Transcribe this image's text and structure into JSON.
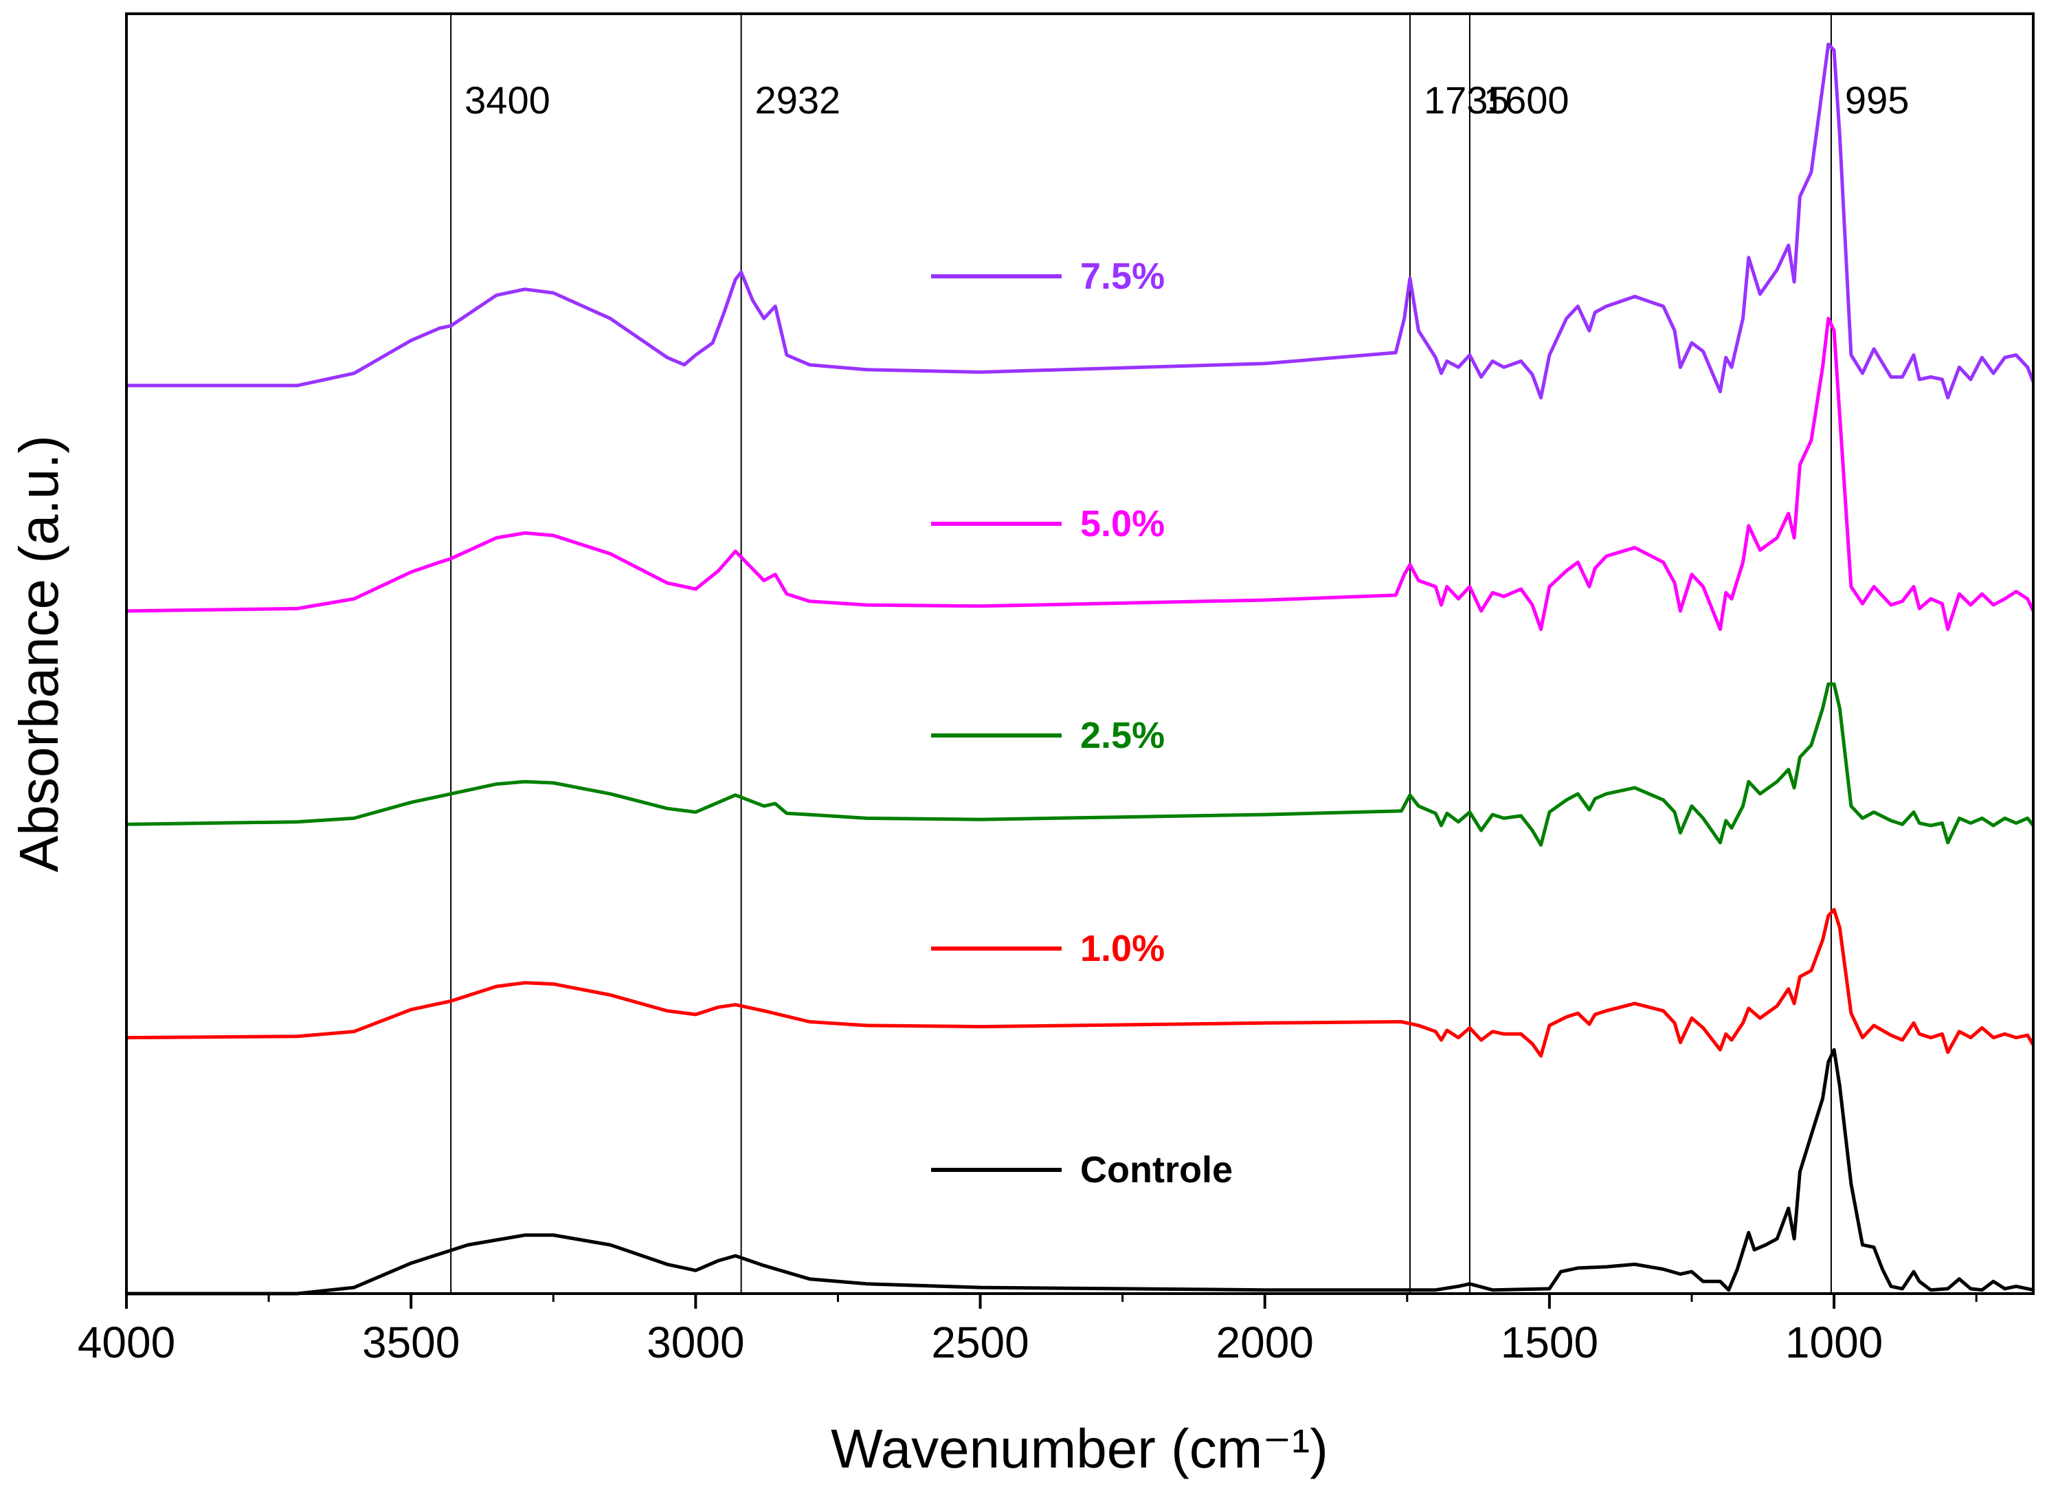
{
  "chart_data": {
    "type": "line",
    "title": "",
    "xlabel": "Wavenumber (cm⁻¹)",
    "ylabel": "Absorbance (a.u.)",
    "xlim": [
      4000,
      650
    ],
    "ylim": [
      0,
      1.05
    ],
    "grid": false,
    "legend_placement": "inline, centered, each entry above its trace",
    "x_ticks": [
      {
        "value": 4000,
        "label": "4000"
      },
      {
        "value": 3500,
        "label": "3500"
      },
      {
        "value": 3000,
        "label": "3000"
      },
      {
        "value": 2500,
        "label": "2500"
      },
      {
        "value": 2000,
        "label": "2000"
      },
      {
        "value": 1500,
        "label": "1500"
      },
      {
        "value": 1000,
        "label": "1000"
      }
    ],
    "reference_lines": [
      {
        "x": 3430,
        "label": "3400"
      },
      {
        "x": 2920,
        "label": "2932"
      },
      {
        "x": 1745,
        "label": "1735"
      },
      {
        "x": 1640,
        "label": "1600"
      },
      {
        "x": 1005,
        "label": "995"
      }
    ],
    "series": [
      {
        "name": "Controle",
        "color": "#000000",
        "x": [
          4000,
          3700,
          3600,
          3500,
          3400,
          3300,
          3250,
          3150,
          3050,
          3000,
          2960,
          2930,
          2880,
          2800,
          2700,
          2500,
          2000,
          1700,
          1660,
          1640,
          1600,
          1500,
          1480,
          1450,
          1400,
          1350,
          1300,
          1270,
          1250,
          1230,
          1200,
          1185,
          1170,
          1150,
          1140,
          1120,
          1100,
          1080,
          1070,
          1060,
          1040,
          1020,
          1010,
          1000,
          990,
          970,
          950,
          930,
          915,
          900,
          880,
          860,
          850,
          830,
          800,
          780,
          760,
          740,
          720,
          700,
          680,
          660,
          650
        ],
        "y": [
          0.0,
          0.0,
          0.005,
          0.025,
          0.04,
          0.048,
          0.048,
          0.04,
          0.024,
          0.019,
          0.027,
          0.031,
          0.023,
          0.012,
          0.008,
          0.005,
          0.003,
          0.003,
          0.006,
          0.008,
          0.003,
          0.004,
          0.018,
          0.021,
          0.022,
          0.024,
          0.02,
          0.016,
          0.018,
          0.01,
          0.01,
          0.003,
          0.02,
          0.05,
          0.036,
          0.04,
          0.045,
          0.07,
          0.045,
          0.1,
          0.13,
          0.16,
          0.19,
          0.2,
          0.17,
          0.09,
          0.04,
          0.038,
          0.02,
          0.006,
          0.004,
          0.018,
          0.01,
          0.003,
          0.004,
          0.012,
          0.004,
          0.003,
          0.01,
          0.004,
          0.006,
          0.004,
          0.003
        ]
      },
      {
        "name": "1.0%",
        "color": "#FF0000",
        "x": [
          4000,
          3700,
          3600,
          3500,
          3450,
          3430,
          3350,
          3300,
          3250,
          3150,
          3050,
          3000,
          2960,
          2930,
          2880,
          2800,
          2700,
          2500,
          2000,
          1760,
          1730,
          1700,
          1690,
          1680,
          1660,
          1640,
          1620,
          1600,
          1580,
          1550,
          1530,
          1515,
          1500,
          1470,
          1450,
          1430,
          1420,
          1400,
          1350,
          1300,
          1280,
          1270,
          1250,
          1230,
          1200,
          1190,
          1180,
          1160,
          1150,
          1130,
          1100,
          1080,
          1070,
          1060,
          1040,
          1020,
          1010,
          1000,
          990,
          970,
          950,
          930,
          900,
          880,
          860,
          850,
          830,
          810,
          800,
          780,
          760,
          740,
          720,
          700,
          680,
          660,
          650
        ],
        "y": [
          0.21,
          0.211,
          0.215,
          0.233,
          0.238,
          0.24,
          0.252,
          0.255,
          0.254,
          0.245,
          0.232,
          0.229,
          0.235,
          0.237,
          0.232,
          0.223,
          0.22,
          0.219,
          0.222,
          0.223,
          0.22,
          0.215,
          0.208,
          0.216,
          0.21,
          0.218,
          0.208,
          0.215,
          0.213,
          0.213,
          0.205,
          0.195,
          0.22,
          0.227,
          0.23,
          0.221,
          0.229,
          0.232,
          0.238,
          0.232,
          0.222,
          0.206,
          0.226,
          0.218,
          0.2,
          0.213,
          0.208,
          0.222,
          0.234,
          0.226,
          0.236,
          0.25,
          0.238,
          0.26,
          0.265,
          0.29,
          0.31,
          0.315,
          0.3,
          0.23,
          0.21,
          0.22,
          0.212,
          0.208,
          0.222,
          0.213,
          0.21,
          0.213,
          0.198,
          0.215,
          0.21,
          0.218,
          0.21,
          0.213,
          0.21,
          0.212,
          0.204
        ]
      },
      {
        "name": "2.5%",
        "color": "#008000",
        "x": [
          4000,
          3700,
          3600,
          3500,
          3450,
          3430,
          3350,
          3300,
          3250,
          3150,
          3050,
          3000,
          2960,
          2930,
          2880,
          2860,
          2840,
          2800,
          2700,
          2500,
          2000,
          1760,
          1745,
          1730,
          1700,
          1690,
          1680,
          1660,
          1640,
          1620,
          1600,
          1580,
          1550,
          1530,
          1515,
          1500,
          1470,
          1450,
          1430,
          1420,
          1400,
          1350,
          1300,
          1280,
          1270,
          1250,
          1230,
          1200,
          1190,
          1180,
          1160,
          1150,
          1130,
          1100,
          1080,
          1070,
          1060,
          1040,
          1020,
          1010,
          1000,
          990,
          970,
          950,
          930,
          900,
          880,
          860,
          850,
          830,
          810,
          800,
          780,
          760,
          740,
          720,
          700,
          680,
          660,
          650
        ],
        "y": [
          0.385,
          0.387,
          0.39,
          0.403,
          0.408,
          0.41,
          0.418,
          0.42,
          0.419,
          0.41,
          0.398,
          0.395,
          0.403,
          0.409,
          0.4,
          0.402,
          0.394,
          0.393,
          0.39,
          0.389,
          0.393,
          0.396,
          0.409,
          0.4,
          0.394,
          0.384,
          0.394,
          0.387,
          0.395,
          0.38,
          0.393,
          0.39,
          0.392,
          0.38,
          0.368,
          0.395,
          0.405,
          0.41,
          0.397,
          0.406,
          0.41,
          0.415,
          0.405,
          0.395,
          0.378,
          0.4,
          0.39,
          0.37,
          0.388,
          0.382,
          0.4,
          0.42,
          0.41,
          0.42,
          0.43,
          0.415,
          0.44,
          0.45,
          0.48,
          0.5,
          0.5,
          0.48,
          0.4,
          0.39,
          0.395,
          0.388,
          0.385,
          0.395,
          0.386,
          0.384,
          0.386,
          0.37,
          0.39,
          0.386,
          0.39,
          0.384,
          0.39,
          0.386,
          0.39,
          0.384
        ]
      },
      {
        "name": "5.0%",
        "color": "#FF00FF",
        "x": [
          4000,
          3700,
          3600,
          3500,
          3450,
          3430,
          3350,
          3300,
          3250,
          3150,
          3050,
          3000,
          2960,
          2930,
          2880,
          2860,
          2840,
          2800,
          2700,
          2500,
          2000,
          1770,
          1755,
          1745,
          1730,
          1700,
          1690,
          1680,
          1660,
          1640,
          1620,
          1600,
          1580,
          1550,
          1530,
          1515,
          1500,
          1470,
          1450,
          1430,
          1420,
          1400,
          1350,
          1300,
          1280,
          1270,
          1250,
          1230,
          1200,
          1190,
          1180,
          1160,
          1150,
          1130,
          1100,
          1080,
          1070,
          1060,
          1040,
          1020,
          1010,
          1000,
          990,
          970,
          950,
          930,
          900,
          880,
          860,
          850,
          830,
          810,
          800,
          780,
          760,
          740,
          720,
          700,
          680,
          660,
          650
        ],
        "y": [
          0.56,
          0.562,
          0.57,
          0.592,
          0.6,
          0.603,
          0.62,
          0.624,
          0.622,
          0.607,
          0.583,
          0.578,
          0.593,
          0.609,
          0.585,
          0.59,
          0.574,
          0.568,
          0.565,
          0.564,
          0.569,
          0.573,
          0.59,
          0.598,
          0.585,
          0.58,
          0.565,
          0.58,
          0.57,
          0.58,
          0.56,
          0.575,
          0.572,
          0.578,
          0.565,
          0.545,
          0.58,
          0.593,
          0.6,
          0.58,
          0.595,
          0.605,
          0.612,
          0.6,
          0.583,
          0.56,
          0.59,
          0.58,
          0.545,
          0.575,
          0.57,
          0.6,
          0.63,
          0.61,
          0.62,
          0.64,
          0.62,
          0.68,
          0.7,
          0.76,
          0.8,
          0.79,
          0.72,
          0.58,
          0.566,
          0.58,
          0.565,
          0.568,
          0.58,
          0.562,
          0.57,
          0.566,
          0.545,
          0.574,
          0.565,
          0.574,
          0.565,
          0.57,
          0.576,
          0.57,
          0.56
        ]
      },
      {
        "name": "7.5%",
        "color": "#9933FF",
        "x": [
          4000,
          3700,
          3600,
          3500,
          3450,
          3430,
          3350,
          3300,
          3250,
          3150,
          3050,
          3020,
          3000,
          2970,
          2950,
          2930,
          2920,
          2900,
          2880,
          2860,
          2840,
          2800,
          2700,
          2500,
          2000,
          1770,
          1755,
          1745,
          1730,
          1700,
          1690,
          1680,
          1660,
          1640,
          1620,
          1600,
          1580,
          1550,
          1530,
          1515,
          1500,
          1470,
          1450,
          1430,
          1420,
          1400,
          1350,
          1300,
          1280,
          1270,
          1250,
          1230,
          1200,
          1190,
          1180,
          1160,
          1150,
          1130,
          1100,
          1080,
          1070,
          1060,
          1040,
          1020,
          1010,
          1000,
          990,
          970,
          950,
          930,
          900,
          880,
          860,
          850,
          830,
          810,
          800,
          780,
          760,
          740,
          720,
          700,
          680,
          660,
          650
        ],
        "y": [
          0.745,
          0.745,
          0.755,
          0.782,
          0.792,
          0.794,
          0.819,
          0.824,
          0.821,
          0.8,
          0.768,
          0.762,
          0.77,
          0.78,
          0.805,
          0.832,
          0.838,
          0.815,
          0.8,
          0.81,
          0.77,
          0.762,
          0.758,
          0.756,
          0.763,
          0.772,
          0.8,
          0.833,
          0.79,
          0.768,
          0.755,
          0.765,
          0.76,
          0.77,
          0.752,
          0.765,
          0.76,
          0.765,
          0.754,
          0.735,
          0.77,
          0.8,
          0.81,
          0.79,
          0.805,
          0.81,
          0.818,
          0.81,
          0.79,
          0.76,
          0.78,
          0.773,
          0.74,
          0.768,
          0.76,
          0.8,
          0.85,
          0.82,
          0.84,
          0.86,
          0.83,
          0.9,
          0.92,
          0.99,
          1.025,
          1.02,
          0.95,
          0.77,
          0.755,
          0.775,
          0.752,
          0.752,
          0.77,
          0.75,
          0.752,
          0.75,
          0.735,
          0.76,
          0.75,
          0.768,
          0.755,
          0.768,
          0.77,
          0.76,
          0.748
        ]
      }
    ]
  }
}
